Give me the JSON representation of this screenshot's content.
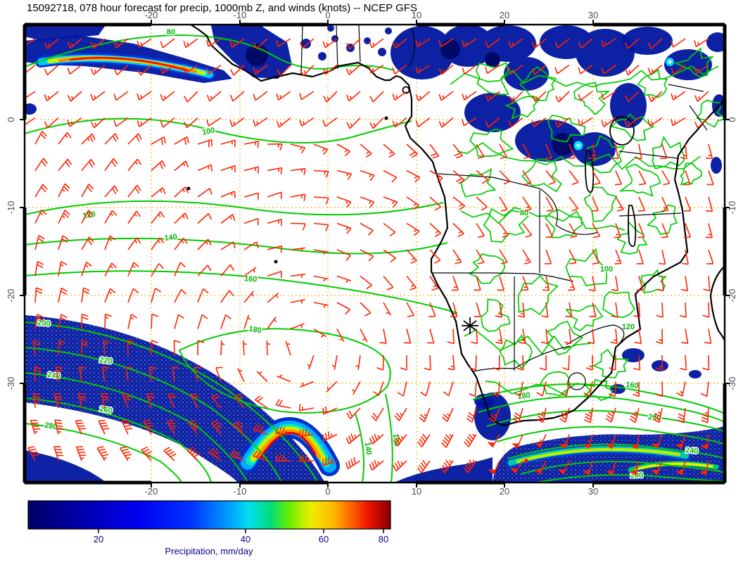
{
  "title": "15092718, 078 hour forecast for precip, 1000mb Z, and winds (knots) -- NCEP GFS",
  "map": {
    "lon_ticks": [
      "-20",
      "-10",
      "0",
      "10",
      "20",
      "30"
    ],
    "lat_ticks": [
      "0",
      "-10",
      "-20",
      "-30"
    ],
    "contour_labels": [
      "80",
      "100",
      "120",
      "140",
      "160",
      "180",
      "200",
      "220",
      "240",
      "260",
      "280",
      "140",
      "160",
      "160",
      "180",
      "200",
      "240",
      "280",
      "80",
      "100",
      "120"
    ]
  },
  "colorbar": {
    "label": "Precipitation, mm/day",
    "ticks": [
      "20",
      "40",
      "60",
      "80"
    ]
  },
  "colors": {
    "height_contour": "#00cc00",
    "wind_barb": "#ff2200",
    "precipitation_base": "#0016a0",
    "grid": "#ffaa00",
    "coastline": "#000000"
  }
}
